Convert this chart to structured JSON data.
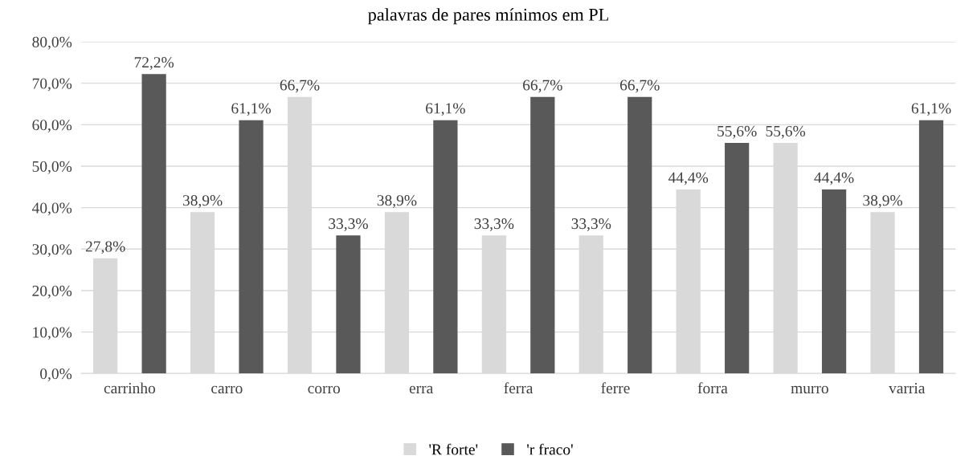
{
  "chart_data": {
    "type": "bar",
    "title": "palavras de pares mínimos em PL",
    "categories": [
      "carrinho",
      "carro",
      "corro",
      "erra",
      "ferra",
      "ferre",
      "forra",
      "murro",
      "varria"
    ],
    "series": [
      {
        "name": "'R forte'",
        "color": "#d9d9d9",
        "values": [
          27.8,
          38.9,
          66.7,
          38.9,
          33.3,
          33.3,
          44.4,
          55.6,
          38.9
        ],
        "value_labels": [
          "27,8%",
          "38,9%",
          "66,7%",
          "38,9%",
          "33,3%",
          "33,3%",
          "44,4%",
          "55,6%",
          "38,9%"
        ]
      },
      {
        "name": "'r fraco'",
        "color": "#595959",
        "values": [
          72.2,
          61.1,
          33.3,
          61.1,
          66.7,
          66.7,
          55.6,
          44.4,
          61.1
        ],
        "value_labels": [
          "72,2%",
          "61,1%",
          "33,3%",
          "61,1%",
          "66,7%",
          "66,7%",
          "55,6%",
          "44,4%",
          "61,1%"
        ]
      }
    ],
    "ylim": [
      0,
      80
    ],
    "yticks": [
      {
        "value": 0,
        "label": "0,0%"
      },
      {
        "value": 10,
        "label": "10,0%"
      },
      {
        "value": 20,
        "label": "20,0%"
      },
      {
        "value": 30,
        "label": "30,0%"
      },
      {
        "value": 40,
        "label": "40,0%"
      },
      {
        "value": 50,
        "label": "50,0%"
      },
      {
        "value": 60,
        "label": "60,0%"
      },
      {
        "value": 70,
        "label": "70,0%"
      },
      {
        "value": 80,
        "label": "80,0%"
      }
    ],
    "grid": "y",
    "legend": "bottom"
  }
}
